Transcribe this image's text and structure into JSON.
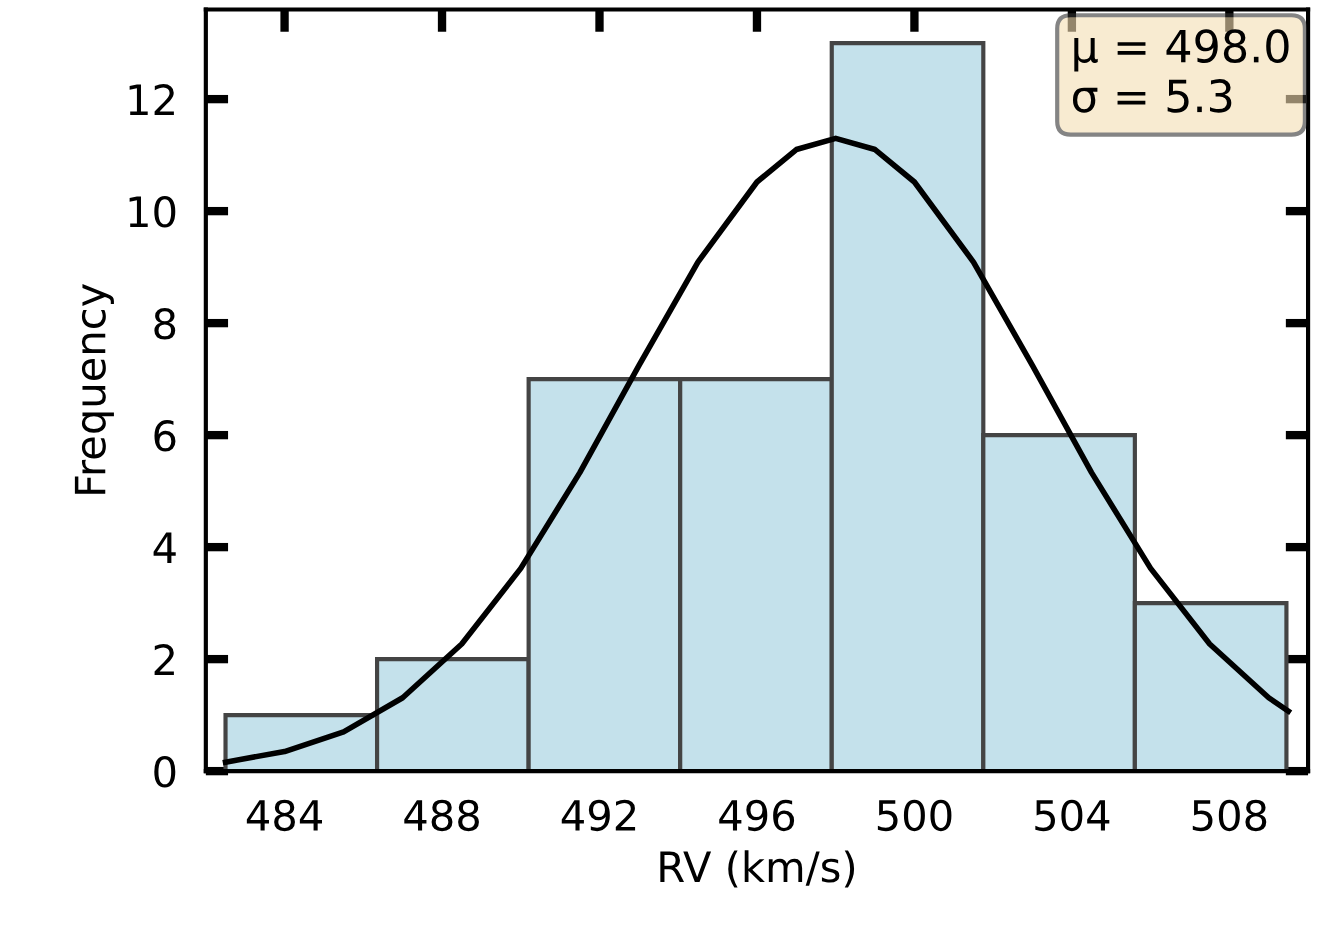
{
  "chart_data": {
    "type": "histogram",
    "xlabel": "RV (km/s)",
    "ylabel": "Frequency",
    "annotations": [
      "μ = 498.0\nσ = 5.3"
    ],
    "series": [
      {
        "color": "#c4e1eb",
        "bins": [
          482.5,
          486.35,
          490.2,
          494.05,
          497.9,
          501.75,
          505.6,
          509.45
        ],
        "values": [
          1,
          2,
          7,
          7,
          13,
          6,
          3
        ]
      },
      {
        "type": "line",
        "color": "#000000",
        "x": [
          482.5,
          484,
          485.5,
          487,
          488.5,
          490,
          491.5,
          493,
          494.5,
          496,
          497,
          498,
          499,
          500,
          501.5,
          503,
          504.5,
          506,
          507.5,
          509,
          509.5
        ],
        "values": [
          0.16,
          0.35,
          0.7,
          1.31,
          2.27,
          3.62,
          5.33,
          7.24,
          9.09,
          10.52,
          11.1,
          11.3,
          11.1,
          10.52,
          9.09,
          7.24,
          5.33,
          3.62,
          2.27,
          1.31,
          1.07
        ]
      }
    ],
    "xlim": [
      482,
      510
    ],
    "ylim": [
      0,
      13.6
    ],
    "xticks": [
      484,
      488,
      492,
      496,
      500,
      504,
      508
    ],
    "yticks": [
      0,
      2,
      4,
      6,
      8,
      10,
      12
    ],
    "grid": false
  }
}
